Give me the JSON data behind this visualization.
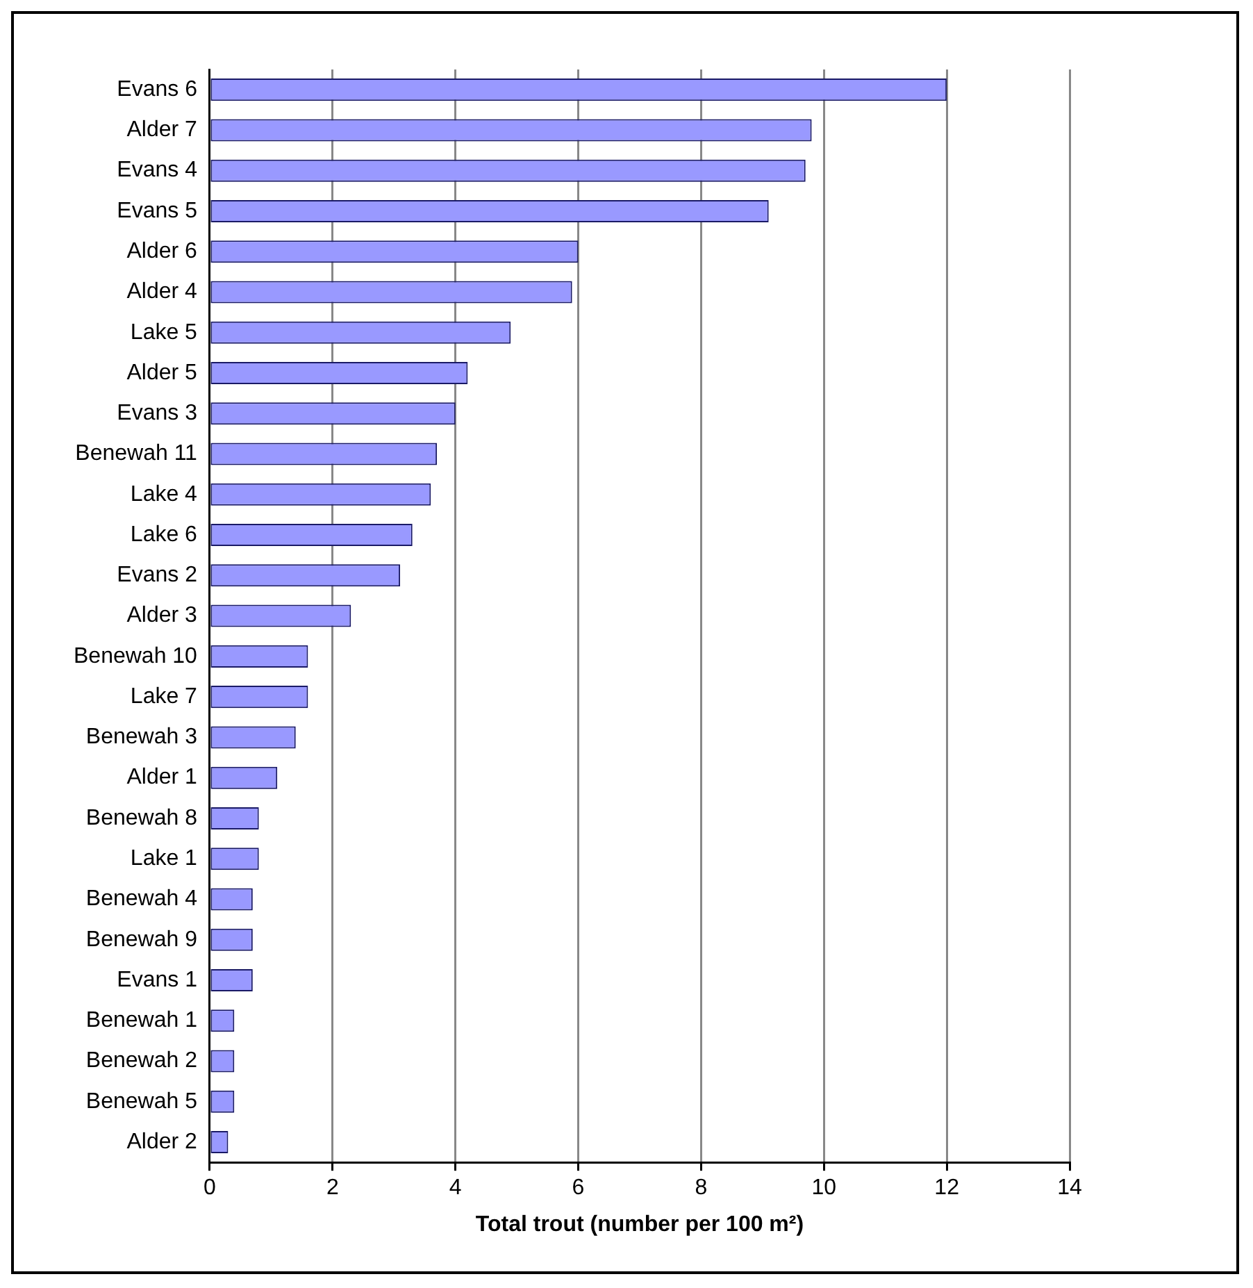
{
  "chart_data": {
    "type": "bar",
    "orientation": "horizontal",
    "xlabel": "Total trout (number per 100 m²)",
    "categories": [
      "Evans 6",
      "Alder 7",
      "Evans 4",
      "Evans 5",
      "Alder 6",
      "Alder 4",
      "Lake 5",
      "Alder 5",
      "Evans 3",
      "Benewah 11",
      "Lake 4",
      "Lake 6",
      "Evans 2",
      "Alder 3",
      "Benewah 10",
      "Lake 7",
      "Benewah 3",
      "Alder 1",
      "Benewah 8",
      "Lake 1",
      "Benewah 4",
      "Benewah 9",
      "Evans 1",
      "Benewah 1",
      "Benewah 2",
      "Benewah 5",
      "Alder 2"
    ],
    "values": [
      12.0,
      9.8,
      9.7,
      9.1,
      6.0,
      5.9,
      4.9,
      4.2,
      4.0,
      3.7,
      3.6,
      3.3,
      3.1,
      2.3,
      1.6,
      1.6,
      1.4,
      1.1,
      0.8,
      0.8,
      0.7,
      0.7,
      0.7,
      0.4,
      0.4,
      0.4,
      0.3
    ],
    "color": "#9999ff",
    "xlim": [
      0,
      14
    ],
    "xticks": [
      0,
      2,
      4,
      6,
      8,
      10,
      12,
      14
    ],
    "grid": "x",
    "legend": false
  }
}
